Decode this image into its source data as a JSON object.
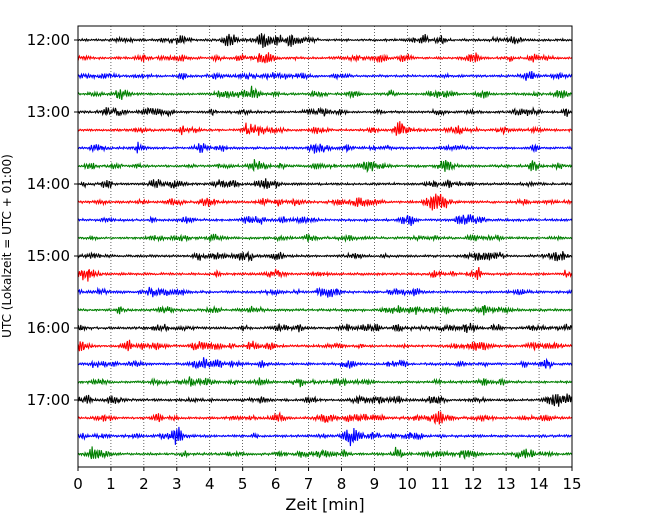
{
  "chart_data": {
    "type": "line",
    "title": "",
    "xlabel": "Zeit  [min]",
    "ylabel": "UTC (Lokalzeit = UTC + 01:00)",
    "xlim": [
      0,
      15
    ],
    "x_ticks": [
      "0",
      "1",
      "2",
      "3",
      "4",
      "5",
      "6",
      "7",
      "8",
      "9",
      "10",
      "11",
      "12",
      "13",
      "14",
      "15"
    ],
    "y_tick_labels": [
      "12:00",
      "13:00",
      "14:00",
      "15:00",
      "16:00",
      "17:00"
    ],
    "grid": "vertical dotted lines at each minute",
    "legend": "none",
    "trace_interval_minutes": 15,
    "trace_colors_cycle": [
      "#000000",
      "#ff0000",
      "#0000ff",
      "#008000"
    ],
    "series": [
      {
        "start": "12:00",
        "color": "#000000"
      },
      {
        "start": "12:15",
        "color": "#ff0000"
      },
      {
        "start": "12:30",
        "color": "#0000ff"
      },
      {
        "start": "12:45",
        "color": "#008000"
      },
      {
        "start": "13:00",
        "color": "#000000"
      },
      {
        "start": "13:15",
        "color": "#ff0000"
      },
      {
        "start": "13:30",
        "color": "#0000ff"
      },
      {
        "start": "13:45",
        "color": "#008000"
      },
      {
        "start": "14:00",
        "color": "#000000"
      },
      {
        "start": "14:15",
        "color": "#ff0000"
      },
      {
        "start": "14:30",
        "color": "#0000ff"
      },
      {
        "start": "14:45",
        "color": "#008000"
      },
      {
        "start": "15:00",
        "color": "#000000"
      },
      {
        "start": "15:15",
        "color": "#ff0000"
      },
      {
        "start": "15:30",
        "color": "#0000ff"
      },
      {
        "start": "15:45",
        "color": "#008000"
      },
      {
        "start": "16:00",
        "color": "#000000"
      },
      {
        "start": "16:15",
        "color": "#ff0000"
      },
      {
        "start": "16:30",
        "color": "#0000ff"
      },
      {
        "start": "16:45",
        "color": "#008000"
      },
      {
        "start": "17:00",
        "color": "#000000"
      },
      {
        "start": "17:15",
        "color": "#ff0000"
      },
      {
        "start": "17:30",
        "color": "#0000ff"
      },
      {
        "start": "17:45",
        "color": "#008000"
      }
    ]
  }
}
